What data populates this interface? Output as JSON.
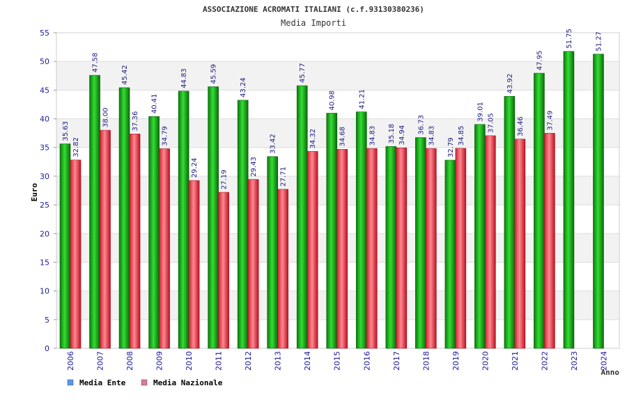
{
  "chart_data": {
    "type": "bar",
    "title": "ASSOCIAZIONE ACROMATI ITALIANI (c.f.93130380236)",
    "subtitle": "Media Importi",
    "xlabel": "Anno",
    "ylabel": "Euro",
    "ylim": [
      0,
      55
    ],
    "yticks": [
      0,
      5,
      10,
      15,
      20,
      25,
      30,
      35,
      40,
      45,
      50,
      55
    ],
    "grid": true,
    "legend_position": "bottom-left",
    "categories": [
      "2006",
      "2007",
      "2008",
      "2009",
      "2010",
      "2011",
      "2012",
      "2013",
      "2014",
      "2015",
      "2016",
      "2017",
      "2018",
      "2019",
      "2020",
      "2021",
      "2022",
      "2023",
      "2024"
    ],
    "series": [
      {
        "name": "Media Ente",
        "color": "#22bb22",
        "legend_color": "#5599ee",
        "values": [
          35.63,
          47.58,
          45.42,
          40.41,
          44.83,
          45.59,
          43.24,
          33.42,
          45.77,
          40.98,
          41.21,
          35.18,
          36.73,
          32.79,
          39.01,
          43.92,
          47.95,
          51.75,
          51.27
        ],
        "labels": [
          "35.63",
          "47.58",
          "45.42",
          "40.41",
          "44.83",
          "45.59",
          "43.24",
          "33.42",
          "45.77",
          "40.98",
          "41.21",
          "35.18",
          "36.73",
          "32.79",
          "39.01",
          "43.92",
          "47.95",
          "51.75",
          "51.27"
        ]
      },
      {
        "name": "Media Nazionale",
        "color": "#ee4455",
        "legend_color": "#dd7799",
        "values": [
          32.82,
          38.0,
          37.36,
          34.79,
          29.24,
          27.19,
          29.43,
          27.71,
          34.32,
          34.68,
          34.83,
          34.94,
          34.83,
          34.85,
          37.05,
          36.46,
          37.49,
          null,
          null
        ],
        "labels": [
          "32.82",
          "38.00",
          "37.36",
          "34.79",
          "29.24",
          "27.19",
          "29.43",
          "27.71",
          "34.32",
          "34.68",
          "34.83",
          "34.94",
          "34.83",
          "34.85",
          "37.05",
          "36.46",
          "37.49",
          "",
          ""
        ]
      }
    ]
  }
}
